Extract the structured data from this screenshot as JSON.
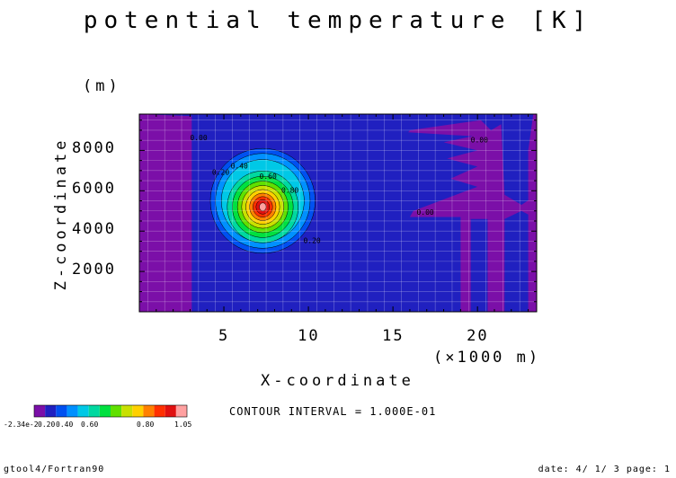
{
  "title": "potential temperature [K]",
  "footer": {
    "left": "gtool4/Fortran90",
    "right": "date: 4/ 1/ 3 page: 1"
  },
  "contour_interval": "CONTOUR INTERVAL = 1.000E-01",
  "colorbar": {
    "colors": [
      "#7b0fa8",
      "#2020c0",
      "#0050f0",
      "#0090ff",
      "#00c8e6",
      "#00d8a0",
      "#00e040",
      "#60e000",
      "#c8e000",
      "#ffd000",
      "#ff8000",
      "#ff3000",
      "#e01010",
      "#ffa0a0"
    ],
    "tick_labels": [
      "-2.34e-2",
      "0.20",
      "0.40",
      "0.60",
      "0.80",
      "1.05"
    ]
  },
  "chart_data": {
    "type": "contour",
    "title": "potential temperature [K]",
    "xlabel": "X-coordinate",
    "x_units": "(×1000 m)",
    "ylabel": "Z-coordinate",
    "y_units": "(m)",
    "xlim": [
      0,
      23.5
    ],
    "ylim": [
      0,
      9800
    ],
    "x_ticks": [
      5,
      10,
      15,
      20
    ],
    "y_ticks": [
      2000,
      4000,
      6000,
      8000
    ],
    "grid": true,
    "field_min": -0.0234,
    "field_max": 1.05,
    "contour_interval": 0.1,
    "warm_bubble": {
      "center_x": 7.3,
      "center_z": 5200,
      "max_value": 1.05
    },
    "contour_labels": [
      {
        "text": "0.20",
        "x": 4.3,
        "z": 6800
      },
      {
        "text": "0.40",
        "x": 5.4,
        "z": 7100
      },
      {
        "text": "0.60",
        "x": 7.1,
        "z": 6600
      },
      {
        "text": "0.80",
        "x": 8.4,
        "z": 5900
      },
      {
        "text": "0.20",
        "x": 9.7,
        "z": 3400
      },
      {
        "text": "0.00",
        "x": 3.0,
        "z": 8500
      },
      {
        "text": "0.00",
        "x": 19.6,
        "z": 8400
      },
      {
        "text": "0.00",
        "x": 16.4,
        "z": 4800
      }
    ]
  }
}
